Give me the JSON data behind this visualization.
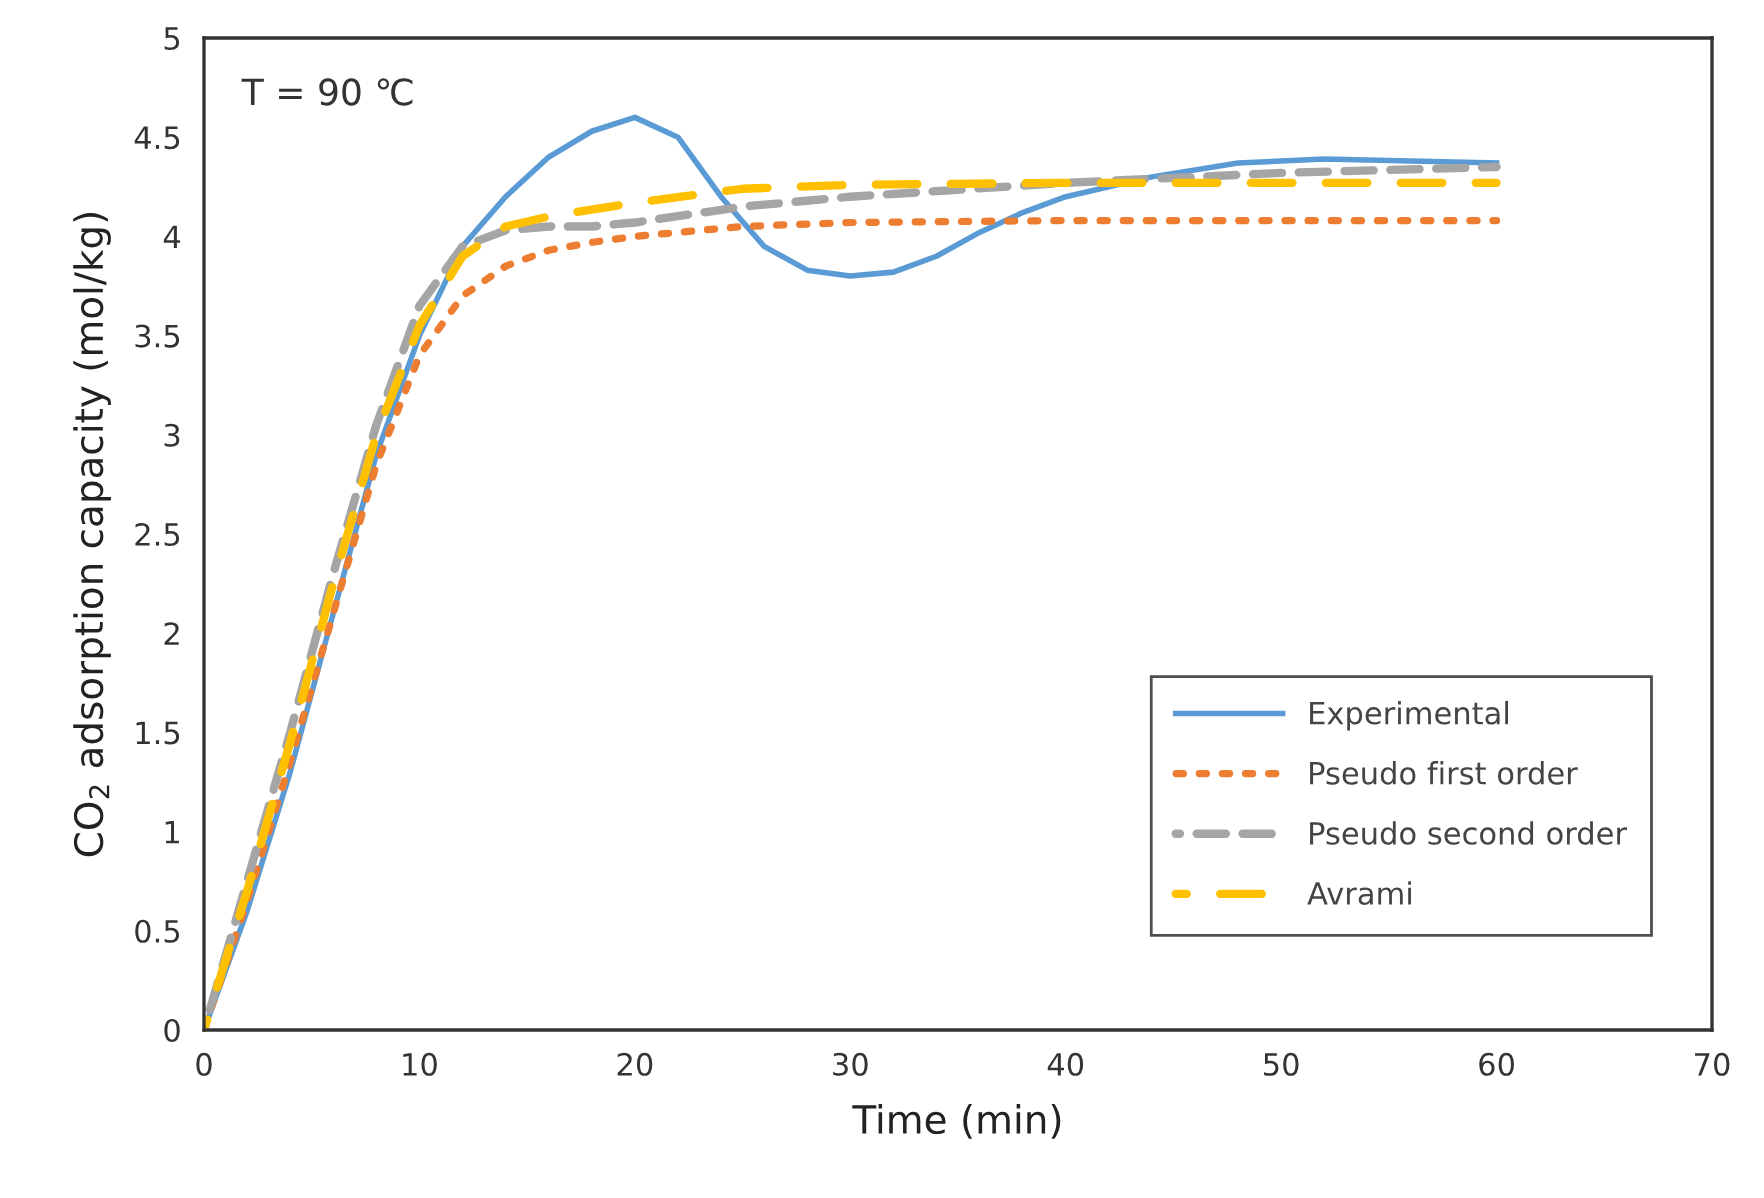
{
  "chart_data": {
    "type": "line",
    "xlabel": "Time (min)",
    "ylabel": "CO$_{2}$ adsorption capacity (mol/kg)",
    "annotations": [
      "T = 90 ℃"
    ],
    "xlim": [
      0,
      70
    ],
    "xticks": [
      0,
      10,
      20,
      30,
      40,
      50,
      60,
      70
    ],
    "ylim": [
      0,
      5
    ],
    "yticks": [
      0,
      0.5,
      1,
      1.5,
      2,
      2.5,
      3,
      3.5,
      4,
      4.5,
      5
    ],
    "grid": false,
    "legend": "bottom right",
    "marker": "none",
    "series": [
      {
        "name": "Experimental",
        "color": "#5b9bd5",
        "line_style": "solid",
        "x": [
          0,
          2,
          4,
          6,
          8,
          10,
          12,
          14,
          16,
          18,
          20,
          22,
          24,
          26,
          28,
          30,
          32,
          34,
          36,
          38,
          40,
          44,
          48,
          52,
          56,
          60
        ],
        "values": [
          0,
          0.6,
          1.3,
          2.1,
          2.9,
          3.5,
          3.95,
          4.2,
          4.4,
          4.53,
          4.6,
          4.5,
          4.2,
          3.95,
          3.83,
          3.8,
          3.82,
          3.9,
          4.02,
          4.12,
          4.2,
          4.3,
          4.37,
          4.39,
          4.38,
          4.37
        ]
      },
      {
        "name": "Pseudo first order",
        "color": "#ed7d31",
        "line_style": "dotted",
        "x": [
          0,
          2,
          4,
          6,
          8,
          10,
          12,
          14,
          16,
          18,
          20,
          25,
          30,
          40,
          50,
          60
        ],
        "values": [
          0,
          0.65,
          1.35,
          2.1,
          2.85,
          3.4,
          3.7,
          3.85,
          3.93,
          3.97,
          4.0,
          4.05,
          4.07,
          4.08,
          4.08,
          4.08
        ]
      },
      {
        "name": "Pseudo second order",
        "color": "#a5a5a5",
        "line_style": "dashed",
        "x": [
          0,
          2,
          4,
          6,
          8,
          10,
          12,
          14,
          16,
          18,
          20,
          25,
          30,
          40,
          50,
          60
        ],
        "values": [
          0,
          0.75,
          1.5,
          2.3,
          3.05,
          3.65,
          3.95,
          4.03,
          4.05,
          4.05,
          4.07,
          4.15,
          4.2,
          4.27,
          4.32,
          4.35
        ]
      },
      {
        "name": "Avrami",
        "color": "#ffc000",
        "line_style": "longdash",
        "x": [
          0,
          2,
          4,
          6,
          8,
          10,
          12,
          14,
          16,
          20,
          25,
          30,
          40,
          50,
          60
        ],
        "values": [
          0,
          0.7,
          1.45,
          2.25,
          3.0,
          3.55,
          3.9,
          4.05,
          4.1,
          4.17,
          4.24,
          4.26,
          4.27,
          4.27,
          4.27
        ]
      }
    ]
  }
}
